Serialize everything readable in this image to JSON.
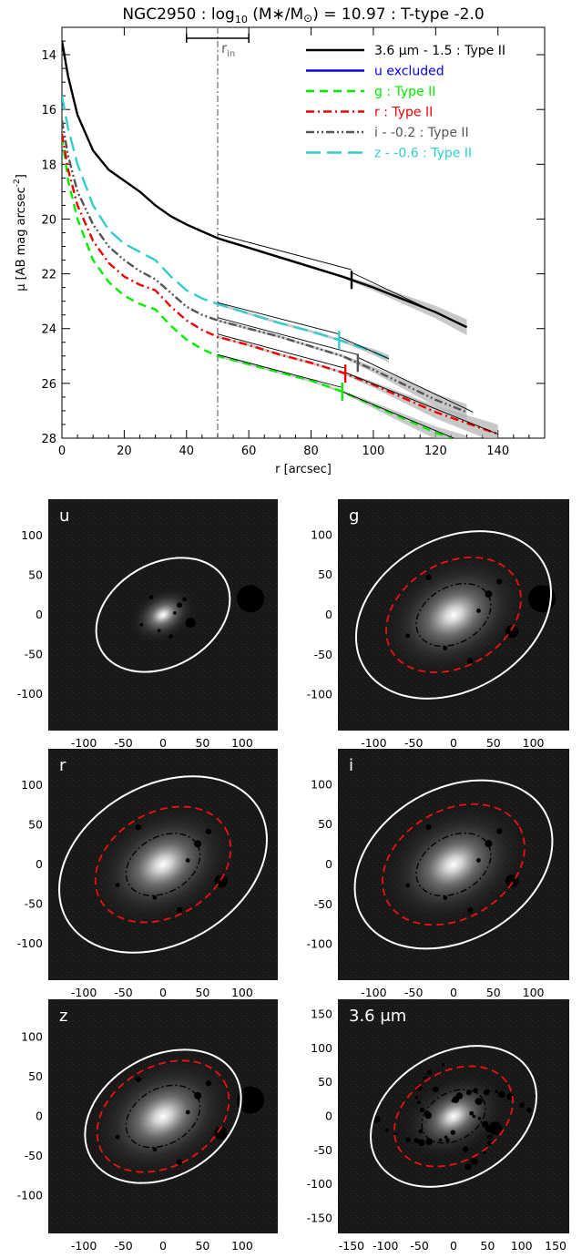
{
  "chart_data": [
    {
      "type": "line",
      "title": "NGC2950 : log10 (M*/M⊙) = 10.97 : T-type -2.0",
      "xlabel": "r [arcsec]",
      "ylabel": "μ [AB mag arcsec⁻²]",
      "xlim": [
        0,
        155
      ],
      "ylim": [
        28,
        13
      ],
      "xticks": [
        0,
        20,
        40,
        60,
        80,
        100,
        120,
        140
      ],
      "yticks": [
        14,
        16,
        18,
        20,
        22,
        24,
        26,
        28
      ],
      "legend_position": "top-right",
      "annotation": {
        "label": "r",
        "subscript": "in",
        "x": 50,
        "bar_range": [
          40,
          60
        ]
      },
      "series": [
        {
          "name": "3.6 μm - 1.5 : Type II",
          "color": "#000000",
          "dash": "solid",
          "break_x": 93,
          "x": [
            0,
            2,
            5,
            10,
            15,
            20,
            25,
            30,
            35,
            40,
            45,
            50,
            60,
            70,
            80,
            90,
            100,
            110,
            120,
            130
          ],
          "y": [
            13.5,
            14.8,
            16.2,
            17.5,
            18.2,
            18.6,
            19.0,
            19.5,
            19.9,
            20.2,
            20.45,
            20.7,
            21.05,
            21.4,
            21.75,
            22.1,
            22.5,
            22.95,
            23.4,
            23.95
          ],
          "fit": [
            [
              50,
              20.55
            ],
            [
              93,
              21.85
            ],
            [
              93,
              21.95
            ],
            [
              130,
              23.95
            ]
          ]
        },
        {
          "name": "u excluded",
          "color": "#0000ff",
          "dash": "solid",
          "x": [],
          "y": []
        },
        {
          "name": "g : Type II",
          "color": "#00ee00",
          "dash": "dash",
          "break_x": 90,
          "x": [
            0,
            2,
            5,
            10,
            15,
            20,
            25,
            30,
            35,
            40,
            45,
            50,
            60,
            70,
            80,
            90,
            100,
            110,
            120,
            130
          ],
          "y": [
            17.0,
            18.6,
            20.0,
            21.5,
            22.3,
            22.8,
            23.1,
            23.3,
            23.9,
            24.4,
            24.75,
            25.0,
            25.3,
            25.6,
            25.9,
            26.3,
            26.8,
            27.3,
            27.8,
            28.2
          ],
          "fit": [
            [
              50,
              24.95
            ],
            [
              90,
              26.15
            ],
            [
              90,
              26.3
            ],
            [
              130,
              28.2
            ]
          ]
        },
        {
          "name": "r : Type II",
          "color": "#ee0000",
          "dash": "dashdot",
          "break_x": 91,
          "x": [
            0,
            2,
            5,
            10,
            15,
            20,
            25,
            30,
            35,
            40,
            45,
            50,
            60,
            70,
            80,
            90,
            100,
            110,
            120,
            130,
            140
          ],
          "y": [
            16.9,
            18.2,
            19.5,
            20.8,
            21.6,
            22.1,
            22.4,
            22.6,
            23.2,
            23.7,
            24.05,
            24.3,
            24.6,
            24.95,
            25.25,
            25.6,
            26.05,
            26.55,
            27.05,
            27.45,
            27.85
          ],
          "fit": [
            [
              50,
              24.2
            ],
            [
              91,
              25.45
            ],
            [
              91,
              25.6
            ],
            [
              140,
              27.85
            ]
          ]
        },
        {
          "name": "i - -0.2 : Type II",
          "color": "#555555",
          "dash": "dashdotdot",
          "break_x": 95,
          "x": [
            0,
            2,
            5,
            10,
            15,
            20,
            25,
            30,
            35,
            40,
            45,
            50,
            60,
            70,
            80,
            90,
            100,
            110,
            120,
            130
          ],
          "y": [
            16.4,
            17.7,
            19.0,
            20.2,
            21.0,
            21.5,
            21.9,
            22.2,
            22.7,
            23.2,
            23.5,
            23.7,
            24.0,
            24.3,
            24.65,
            25.0,
            25.5,
            26.05,
            26.6,
            27.05
          ],
          "fit": [
            [
              50,
              23.6
            ],
            [
              95,
              24.95
            ],
            [
              95,
              25.05
            ],
            [
              132,
              27.05
            ]
          ]
        },
        {
          "name": "z - -0.6 : Type II",
          "color": "#33cccc",
          "dash": "longdash",
          "break_x": 89,
          "x": [
            0,
            2,
            5,
            10,
            15,
            20,
            25,
            30,
            35,
            40,
            45,
            50,
            60,
            70,
            80,
            90,
            100,
            105
          ],
          "y": [
            15.5,
            16.7,
            18.0,
            19.5,
            20.4,
            20.9,
            21.2,
            21.5,
            22.1,
            22.6,
            22.9,
            23.1,
            23.45,
            23.8,
            24.1,
            24.45,
            24.85,
            25.1
          ],
          "fit": [
            [
              50,
              23.05
            ],
            [
              89,
              24.2
            ],
            [
              89,
              24.3
            ],
            [
              105,
              25.1
            ]
          ]
        }
      ]
    },
    {
      "type": "image",
      "panels": [
        {
          "label": "u",
          "xticks": [
            -100,
            -50,
            0,
            50,
            100
          ],
          "yticks": [
            100,
            50,
            0,
            -50,
            -100
          ],
          "ellipse_outer": {
            "a": 90,
            "b": 65,
            "angle": -30
          },
          "ellipse_mid": null,
          "ellipse_inner": null
        },
        {
          "label": "g",
          "xticks": [
            -100,
            -50,
            0,
            50,
            100
          ],
          "yticks": [
            100,
            50,
            0,
            -50,
            -100
          ],
          "ellipse_outer": {
            "a": 130,
            "b": 95,
            "angle": -30
          },
          "ellipse_mid": {
            "a": 90,
            "b": 65,
            "angle": -30
          },
          "ellipse_inner": {
            "a": 50,
            "b": 35,
            "angle": -30
          }
        },
        {
          "label": "r",
          "xticks": [
            -100,
            -50,
            0,
            50,
            100
          ],
          "yticks": [
            100,
            50,
            0,
            -50,
            -100
          ],
          "ellipse_outer": {
            "a": 140,
            "b": 100,
            "angle": -30
          },
          "ellipse_mid": {
            "a": 91,
            "b": 66,
            "angle": -30
          },
          "ellipse_inner": {
            "a": 50,
            "b": 35,
            "angle": -30
          }
        },
        {
          "label": "i",
          "xticks": [
            -100,
            -50,
            0,
            50,
            100
          ],
          "yticks": [
            100,
            50,
            0,
            -50,
            -100
          ],
          "ellipse_outer": {
            "a": 132,
            "b": 95,
            "angle": -30
          },
          "ellipse_mid": {
            "a": 95,
            "b": 68,
            "angle": -30
          },
          "ellipse_inner": {
            "a": 50,
            "b": 35,
            "angle": -30
          }
        },
        {
          "label": "z",
          "xticks": [
            -100,
            -50,
            0,
            50,
            100
          ],
          "yticks": [
            100,
            50,
            0,
            -50,
            -100
          ],
          "ellipse_outer": {
            "a": 105,
            "b": 76,
            "angle": -30
          },
          "ellipse_mid": {
            "a": 89,
            "b": 63,
            "angle": -30
          },
          "ellipse_inner": {
            "a": 50,
            "b": 35,
            "angle": -30
          }
        },
        {
          "label": "3.6 μm",
          "xticks": [
            -150,
            -100,
            -50,
            0,
            50,
            100,
            150
          ],
          "yticks": [
            150,
            100,
            50,
            0,
            -50,
            -100,
            -150
          ],
          "ellipse_outer": {
            "a": 130,
            "b": 93,
            "angle": -30
          },
          "ellipse_mid": {
            "a": 93,
            "b": 66,
            "angle": -30
          },
          "ellipse_inner": {
            "a": 50,
            "b": 35,
            "angle": -30
          }
        }
      ]
    }
  ]
}
